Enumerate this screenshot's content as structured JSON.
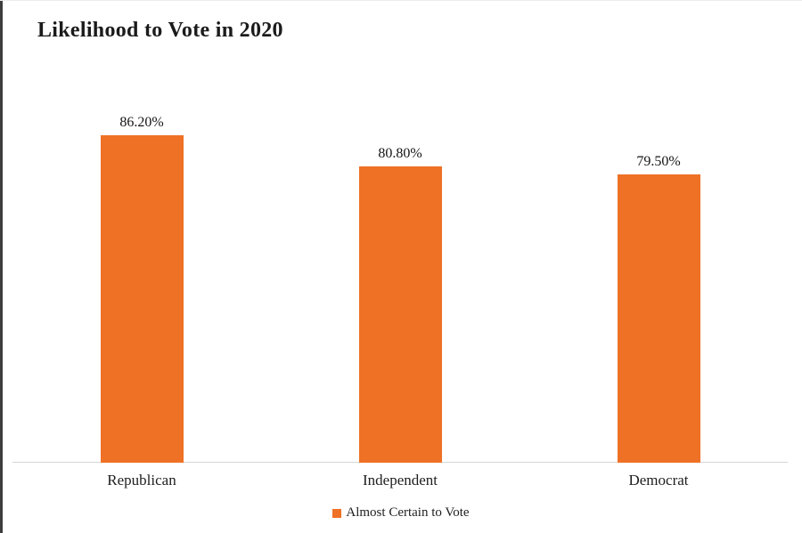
{
  "page": {
    "title": "Likelihood to Vote in 2020"
  },
  "colors": {
    "bar": "#EE7125",
    "axis_line": "#D6D6D6",
    "left_border": "#3D3D3D",
    "text": "#1F1F1F"
  },
  "chart_data": {
    "type": "bar",
    "title": "Likelihood to Vote in 2020",
    "categories": [
      "Republican",
      "Independent",
      "Democrat"
    ],
    "values": [
      86.2,
      80.8,
      79.5
    ],
    "value_labels": [
      "86.20%",
      "80.80%",
      "79.50%"
    ],
    "series": [
      {
        "name": "Almost Certain to Vote",
        "values": [
          86.2,
          80.8,
          79.5
        ]
      }
    ],
    "xlabel": "",
    "ylabel": "",
    "ylim": [
      30,
      90
    ],
    "grid": false,
    "y_axis_visible": false,
    "legend": {
      "position": "bottom",
      "label": "Almost Certain to Vote",
      "marker_color": "#EE7125"
    }
  }
}
